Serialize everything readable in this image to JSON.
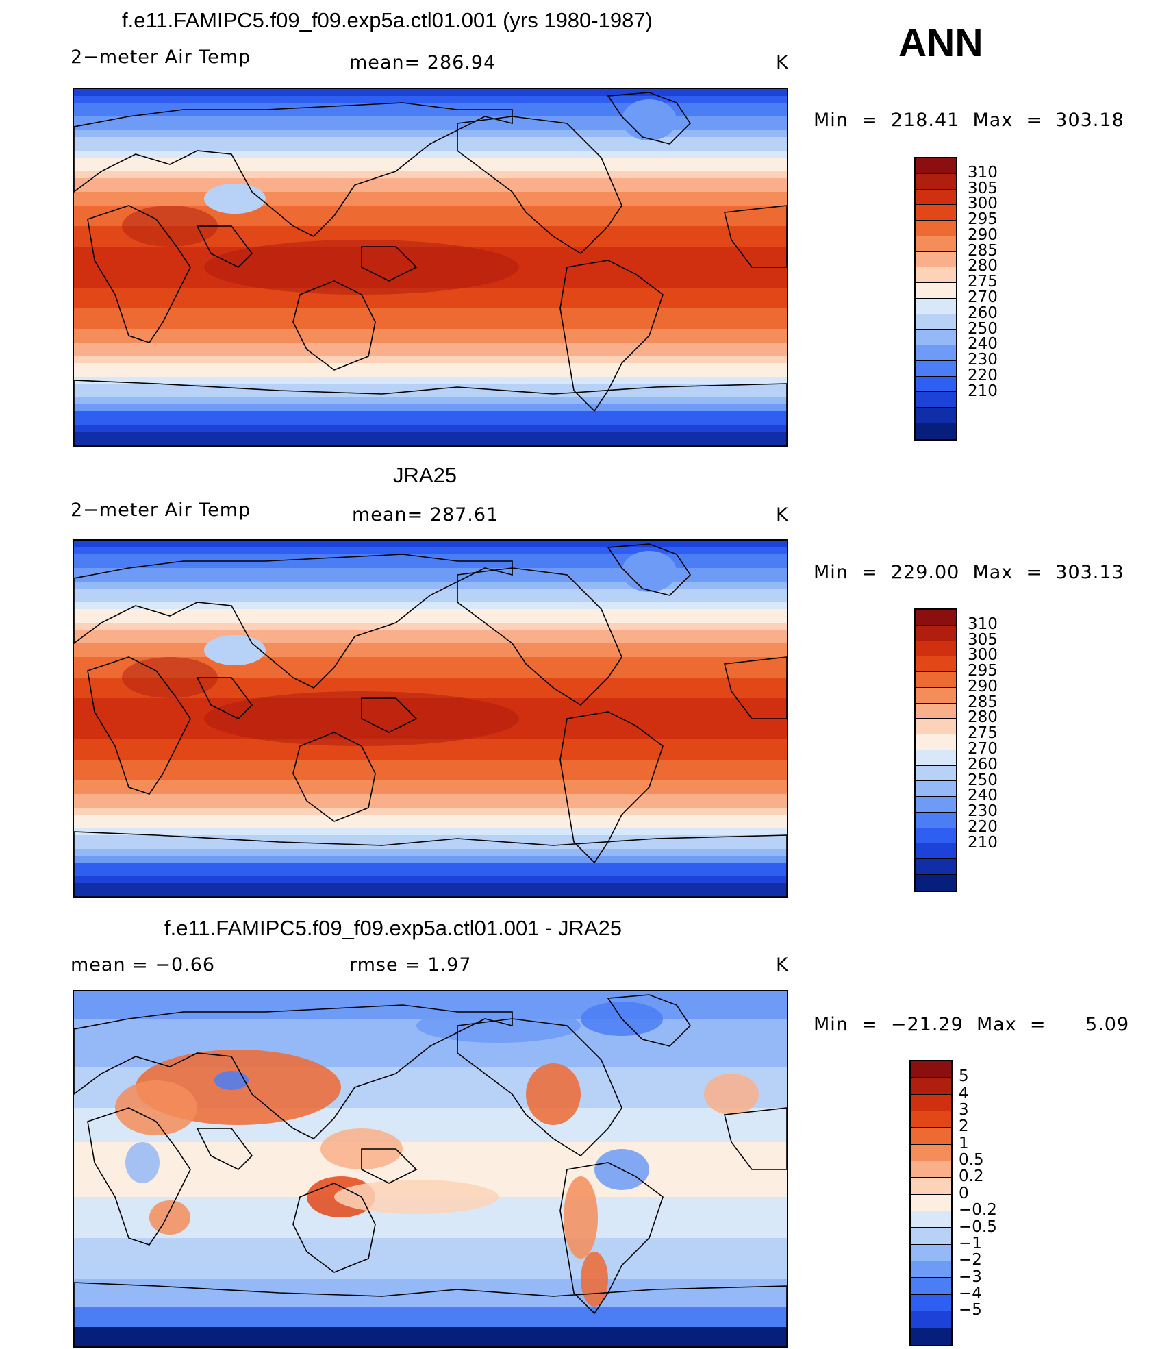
{
  "season": "ANN",
  "temp_levels": [
    "310",
    "305",
    "300",
    "295",
    "290",
    "285",
    "280",
    "275",
    "270",
    "260",
    "250",
    "240",
    "230",
    "220",
    "210"
  ],
  "temp_colors": [
    "#8b0f0f",
    "#b01e0e",
    "#d0300f",
    "#e24817",
    "#ee6a33",
    "#f48d5a",
    "#f9b08a",
    "#fcd3b8",
    "#fdeee2",
    "#d9e8f8",
    "#b8d2f7",
    "#95b8f6",
    "#6d9bf6",
    "#4b7ef5",
    "#2e5ff2",
    "#1d42d8",
    "#0f2ea8",
    "#071f7c"
  ],
  "diff_levels": [
    "5",
    "4",
    "3",
    "2",
    "1",
    "0.5",
    "0.2",
    "0",
    "−0.2",
    "−0.5",
    "−1",
    "−2",
    "−3",
    "−4",
    "−5"
  ],
  "diff_colors": [
    "#8b0f0f",
    "#b01e0e",
    "#d0300f",
    "#e24817",
    "#ee6a33",
    "#f48d5a",
    "#f9b08a",
    "#fcd3b8",
    "#fdeee2",
    "#d9e8f8",
    "#b8d2f7",
    "#95b8f6",
    "#6d9bf6",
    "#4b7ef5",
    "#2e5ff2",
    "#1d42d8",
    "#071f7c"
  ],
  "panels": [
    {
      "title": "f.e11.FAMIPC5.f09_f09.exp5a.ctl01.001 (yrs 1980-1987)",
      "left_label": "2−meter Air Temp",
      "center_label": "mean=  286.94",
      "units": "K",
      "minmax": "Min  =  218.41  Max  =  303.18"
    },
    {
      "title": "JRA25",
      "left_label": "2−meter Air Temp",
      "center_label": "mean=  287.61",
      "units": "K",
      "minmax": "Min  =  229.00  Max  =  303.13"
    },
    {
      "title": "f.e11.FAMIPC5.f09_f09.exp5a.ctl01.001 - JRA25",
      "left_label": "mean  =    −0.66",
      "center_label": "rmse  =     1.97",
      "units": "K",
      "minmax": "Min  =  −21.29  Max  =      5.09"
    }
  ]
}
